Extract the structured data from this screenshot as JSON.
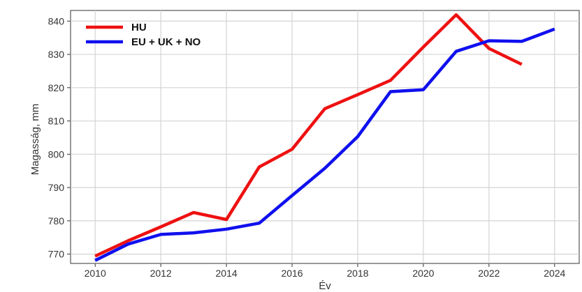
{
  "chart_data": {
    "type": "line",
    "title": "",
    "xlabel": "Év",
    "ylabel": "Magasság, mm",
    "xlim": [
      2009.25,
      2024.75
    ],
    "ylim": [
      767.2,
      843.2
    ],
    "xticks": [
      2010,
      2012,
      2014,
      2016,
      2018,
      2020,
      2022,
      2024
    ],
    "yticks": [
      770,
      780,
      790,
      800,
      810,
      820,
      830,
      840
    ],
    "grid": true,
    "legend_position": "top-left",
    "series": [
      {
        "name": "HU",
        "color": "#ee1111",
        "x": [
          2010,
          2011,
          2012,
          2013,
          2014,
          2015,
          2016,
          2017,
          2018,
          2019,
          2020,
          2021,
          2022,
          2023
        ],
        "y": [
          769.4,
          774.0,
          778.2,
          782.5,
          780.4,
          796.2,
          801.5,
          813.7,
          817.9,
          822.2,
          832.2,
          841.9,
          831.8,
          827.0
        ]
      },
      {
        "name": "EU + UK + NO",
        "color": "#1010ee",
        "x": [
          2010,
          2011,
          2012,
          2013,
          2014,
          2015,
          2016,
          2017,
          2018,
          2019,
          2020,
          2021,
          2022,
          2023,
          2024
        ],
        "y": [
          768.1,
          773.0,
          775.9,
          776.4,
          777.5,
          779.3,
          787.6,
          795.8,
          805.3,
          818.8,
          819.4,
          830.9,
          834.1,
          833.9,
          837.6
        ]
      }
    ]
  }
}
